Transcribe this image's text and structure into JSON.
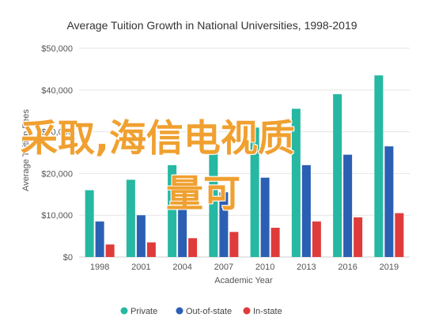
{
  "colors": {
    "Private": "#26b8a2",
    "Out-of-state": "#2b5fb4",
    "In-state": "#e03b3b",
    "overlay": "#f0a030"
  },
  "overlay_text": {
    "line1": "采取,海信电视质",
    "line2": "量可"
  },
  "chart_data": {
    "type": "bar",
    "title": "Average Tuition Growth in National Universities, 1998-2019",
    "xlabel": "Academic Year",
    "ylabel": "Average Tuition Fees",
    "ylim": [
      0,
      50000
    ],
    "yticks": [
      "$0",
      "$10,000",
      "$20,000",
      "$30,000",
      "$40,000",
      "$50,000"
    ],
    "ytick_values": [
      0,
      10000,
      20000,
      30000,
      40000,
      50000
    ],
    "categories": [
      "1998",
      "2001",
      "2004",
      "2007",
      "2010",
      "2013",
      "2016",
      "2019"
    ],
    "series": [
      {
        "name": "Private",
        "values": [
          16000,
          18500,
          22000,
          25500,
          31000,
          35500,
          39000,
          43500
        ]
      },
      {
        "name": "Out-of-state",
        "values": [
          8500,
          10000,
          12500,
          15500,
          19000,
          22000,
          24500,
          26500
        ]
      },
      {
        "name": "In-state",
        "values": [
          3000,
          3500,
          4500,
          6000,
          7000,
          8500,
          9500,
          10500
        ]
      }
    ],
    "legend_position": "bottom",
    "grid": true
  }
}
